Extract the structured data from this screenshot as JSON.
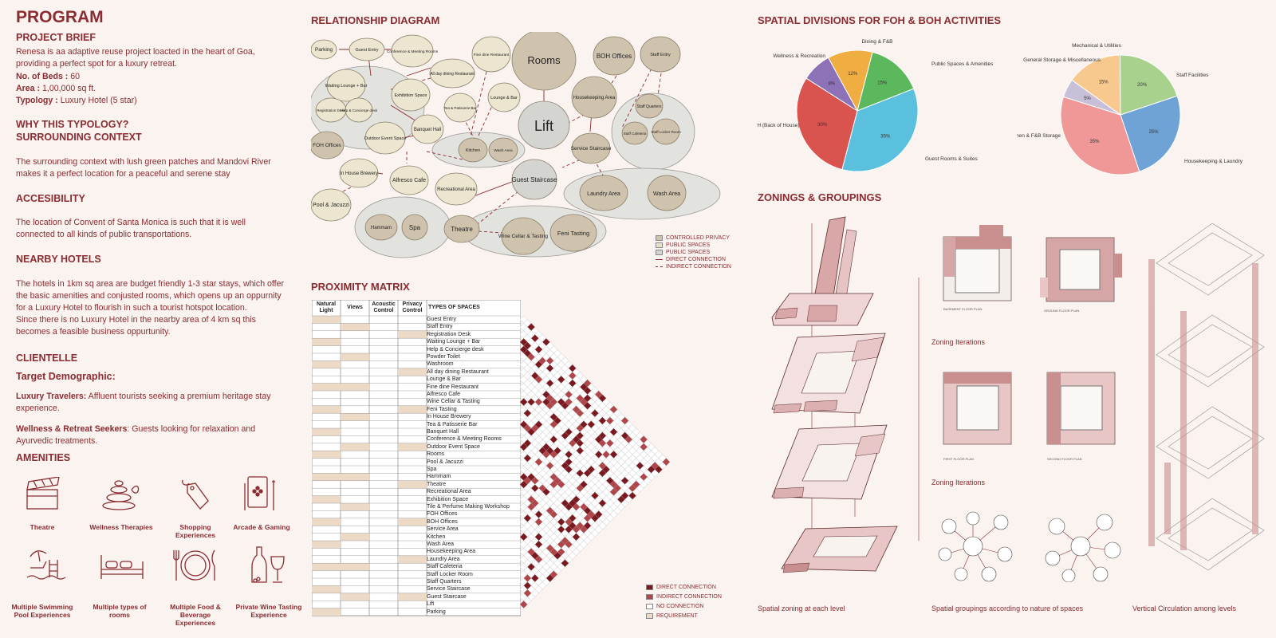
{
  "left": {
    "title": "PROGRAM",
    "brief_heading": "PROJECT BRIEF",
    "brief_text": "Renesa is aa adaptive reuse project loacted in the heart of Goa, providing a perfect spot for a luxury retreat.",
    "beds_label": "No. of Beds : ",
    "beds_value": "60",
    "area_label": "Area : ",
    "area_value": "1,00,000 sq ft.",
    "typology_label": "Typology : ",
    "typology_value": "Luxury Hotel (5 star)",
    "why_heading": "WHY THIS TYPOLOGY?",
    "context_heading": "SURROUNDING CONTEXT",
    "context_text": "The surrounding context with lush green patches and Mandovi River makes it a perfect location for a peaceful and serene stay",
    "access_heading": "ACCESIBILITY",
    "access_text": "The location of Convent of Santa Monica is such that it is well connected to all kinds of public transportations.",
    "nearby_heading": "NEARBY HOTELS",
    "nearby_text1": "The hotels in 1km sq area are budget friendly 1-3 star stays, which offer the basic amenities and conjusted rooms, which opens up an oppurnity for a Luxury Hotel to flourish in such a tourist hotspot location.",
    "nearby_text2": "Since there is no Luxury Hotel in the nearby area of 4 km sq this becomes a feasible business oppurtunity.",
    "clientele_heading": "CLIENTELLE",
    "target_heading": "Target Demographic:",
    "lux_label": "Luxury Travelers:",
    "lux_text": " Affluent tourists seeking a premium heritage stay experience.",
    "well_label": "Wellness & Retreat Seekers",
    "well_text": ": Guests looking for relaxation and Ayurvedic treatments.",
    "amenities_heading": "AMENITIES",
    "amenities": [
      {
        "label": "Theatre",
        "icon": "clapperboard-icon"
      },
      {
        "label": "Wellness Therapies",
        "icon": "spa-stones-icon"
      },
      {
        "label": "Shopping Experiences",
        "icon": "price-tag-icon"
      },
      {
        "label": "Arcade & Gaming",
        "icon": "playing-card-icon"
      },
      {
        "label": "Multiple Swimming Pool Experiences",
        "icon": "pool-icon"
      },
      {
        "label": "Multiple types of rooms",
        "icon": "bed-icon"
      },
      {
        "label": "Multiple Food & Beverage Experiences",
        "icon": "plate-cutlery-icon"
      },
      {
        "label": "Private Wine Tasting Experience",
        "icon": "wine-icon"
      }
    ]
  },
  "relationship": {
    "title": "RELATIONSHIP DIAGRAM",
    "nodes": {
      "parking": "Parking",
      "guest_entry": "Guest Entry",
      "conference": "Conference & Meeting Rooms",
      "fine_dine": "Fine dine Restaurant",
      "rooms": "Rooms",
      "boh_offices": "BOH Offices",
      "staff_entry": "Staff Entry",
      "waiting": "Waiting Lounge + Bar",
      "all_day": "All day dining Restaurant",
      "exhibition": "Exhibition Space",
      "tea": "Tea & Patisserie Bar",
      "lounge": "Lounge & Bar",
      "registration": "Registration Desk",
      "help": "Help & Concierge desk",
      "lift": "Lift",
      "housekeeping": "Housekeeping Area",
      "staff_quarters": "Staff Quarters",
      "banquet": "Banquet Hall",
      "staff_cafeteria": "Staff Cafeteria",
      "staff_locker": "Staff Locker Room",
      "foh_offices": "FOH Offices",
      "outdoor": "Outdoor Event Space",
      "kitchen": "Kitchen",
      "wash_area": "Wash Area",
      "service_staircase": "Service Staircase",
      "brewery": "In House Brewery",
      "alfresco": "Alfresco Cafe",
      "guest_staircase": "Guest Staircase",
      "recreational": "Recreational Area",
      "laundry": "Laundry Area",
      "wash_area2": "Wash Area",
      "pool": "Pool & Jacuzzi",
      "hammam": "Hammam",
      "spa": "Spa",
      "theatre": "Theatre",
      "wine_cellar": "Wine Cellar & Tasting",
      "feni": "Feni Tasting"
    },
    "legend": [
      {
        "label": "CONTROLLED PRIVACY",
        "color": "#cfc3ad"
      },
      {
        "label": "PUBLIC SPACES",
        "color": "#e8e0c8"
      },
      {
        "label": "PUBLIC SPACES",
        "color": "#d4d4d0"
      },
      {
        "label": "DIRECT CONNECTION",
        "color": "#8b2c32"
      },
      {
        "label": "INDIRECT CONNECTION",
        "color": "#8b2c32"
      }
    ]
  },
  "proximity": {
    "title": "PROXIMITY MATRIX",
    "headers": [
      "Natural Light",
      "Views",
      "Acoustic Control",
      "Privacy Control",
      "TYPES OF SPACES"
    ],
    "spaces": [
      "Guest Entry",
      "Staff Entry",
      "Registration Desk",
      "Waiting Lounge + Bar",
      "Help & Concierge desk",
      "Powder Toilet",
      "Washroom",
      "All day dining Restaurant",
      "Lounge & Bar",
      "Fine dine Restaurant",
      "Alfresco Cafe",
      "Wine Cellar & Tasting",
      "Feni Tasting",
      "In House Brewery",
      "Tea & Patisserie Bar",
      "Banquet Hall",
      "Conference & Meeting Rooms",
      "Outdoor Event Space",
      "Rooms",
      "Pool & Jacuzzi",
      "Spa",
      "Hammam",
      "Theatre",
      "Recreational Area",
      "Exhibition Space",
      "Tile & Perfume Making Workshop",
      "FOH Offices",
      "BOH Offices",
      "Service Area",
      "Kitchen",
      "Wash Area",
      "Housekeeping Area",
      "Laundry Area",
      "Staff Cafeteria",
      "Staff Locker Room",
      "Staff Quarters",
      "Service Staircase",
      "Guest Staircase",
      "Lift",
      "Parking"
    ],
    "legend": [
      {
        "label": "DIRECT CONNECTION",
        "color": "#7a1a20"
      },
      {
        "label": "INDIRECT CONNECTION",
        "color": "#b0454a"
      },
      {
        "label": "NO CONNECTION",
        "color": "#ffffff"
      },
      {
        "label": "REQUIREMENT",
        "color": "#ecd9c6"
      }
    ]
  },
  "spatial": {
    "title": "SPATIAL DIVISIONS FOR FOH & BOH ACTIVITIES"
  },
  "chart_data": [
    {
      "type": "pie",
      "title": "",
      "slices": [
        {
          "label": "Dining & F&B",
          "value": 12,
          "color": "#f0ae42"
        },
        {
          "label": "Public Spaces & Amenities",
          "value": 15,
          "color": "#5cb85c"
        },
        {
          "label": "Guest Rooms & Suites",
          "value": 35,
          "color": "#5bc0de"
        },
        {
          "label": "BOH (Back of House)",
          "value": 30,
          "color": "#d9534f"
        },
        {
          "label": "Wellness & Recreation",
          "value": 8,
          "color": "#8e72b8"
        }
      ]
    },
    {
      "type": "pie",
      "title": "",
      "slices": [
        {
          "label": "Mechanical & Utilities",
          "value": 15,
          "color": "#f8c98e"
        },
        {
          "label": "Staff Facilities",
          "value": 20,
          "color": "#a9d18e"
        },
        {
          "label": "Housekeeping & Laundry",
          "value": 25,
          "color": "#6fa3d6"
        },
        {
          "label": "Kitchen & F&B Storage",
          "value": 35,
          "color": "#f09898"
        },
        {
          "label": "General Storage & Miscellaneous",
          "value": 5,
          "color": "#c8bfd8"
        }
      ]
    }
  ],
  "zonings": {
    "title": "ZONINGS & GROUPINGS",
    "iter1": "Zoning Iterations",
    "iter2": "Zoning Iterations",
    "cap1": "Spatial zoning at each level",
    "cap2": "Spatial groupings according to nature of spaces",
    "cap3": "Vertical Circulation among levels",
    "plan_labels": [
      "BASEMENT FLOOR PLAN",
      "GROUND FLOOR PLAN",
      "FIRST FLOOR PLAN",
      "SECOND FLOOR PLAN"
    ]
  }
}
